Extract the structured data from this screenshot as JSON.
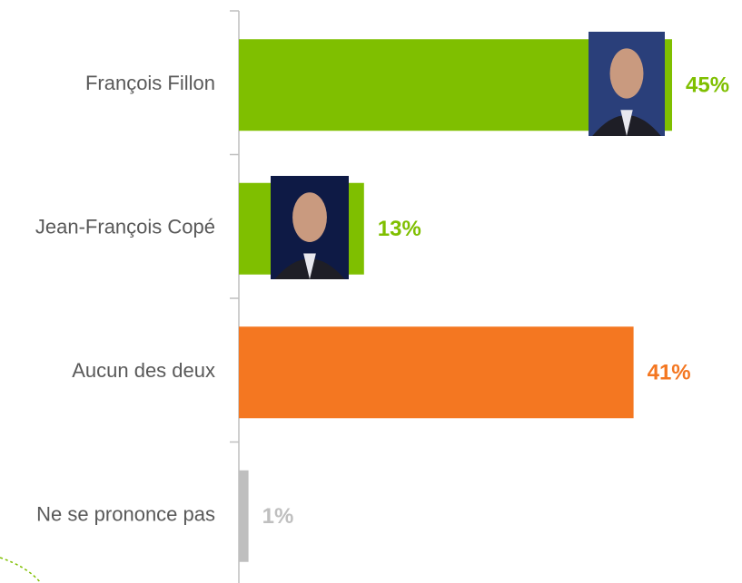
{
  "chart_data": {
    "type": "bar",
    "orientation": "horizontal",
    "categories": [
      "François Fillon",
      "Jean-François Copé",
      "Aucun des deux",
      "Ne se prononce pas"
    ],
    "values": [
      45,
      13,
      41,
      1
    ],
    "value_labels": [
      "45%",
      "13%",
      "41%",
      "1%"
    ],
    "colors": [
      "#7fbf00",
      "#7fbf00",
      "#f47721",
      "#bfbfbf"
    ]
  }
}
